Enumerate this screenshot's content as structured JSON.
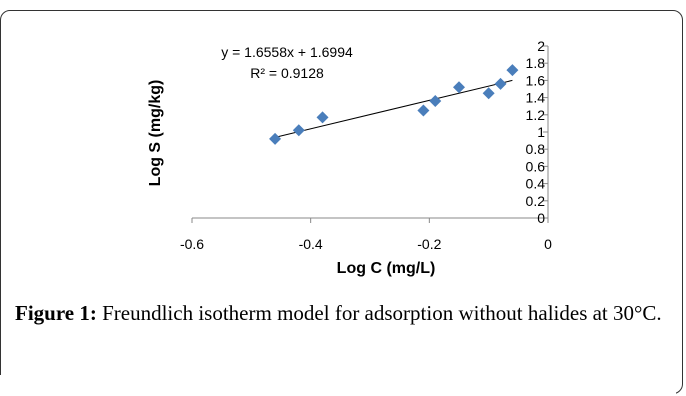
{
  "chart_data": {
    "type": "scatter",
    "x": [
      -0.46,
      -0.42,
      -0.38,
      -0.21,
      -0.19,
      -0.15,
      -0.1,
      -0.08,
      -0.06
    ],
    "y": [
      0.92,
      1.02,
      1.17,
      1.25,
      1.36,
      1.52,
      1.45,
      1.56,
      1.72
    ],
    "xlim": [
      -0.6,
      0
    ],
    "ylim": [
      0,
      2
    ],
    "xticks": [
      "-0.6",
      "-0.4",
      "-0.2",
      "0"
    ],
    "yticks": [
      "0",
      "0.2",
      "0.4",
      "0.6",
      "0.8",
      "1",
      "1.2",
      "1.4",
      "1.6",
      "1.8",
      "2"
    ],
    "xlabel": "Log C (mg/L)",
    "ylabel": "Log S (mg/kg)",
    "trendline": {
      "slope": 1.6558,
      "intercept": 1.6994,
      "equation": "y = 1.6558x + 1.6994",
      "r2": "R² = 0.9128"
    },
    "marker_color": "#4a7ebb",
    "grid": false
  },
  "caption": {
    "label": "Figure 1:",
    "text": " Freundlich isotherm model for adsorption without halides at 30°C."
  }
}
